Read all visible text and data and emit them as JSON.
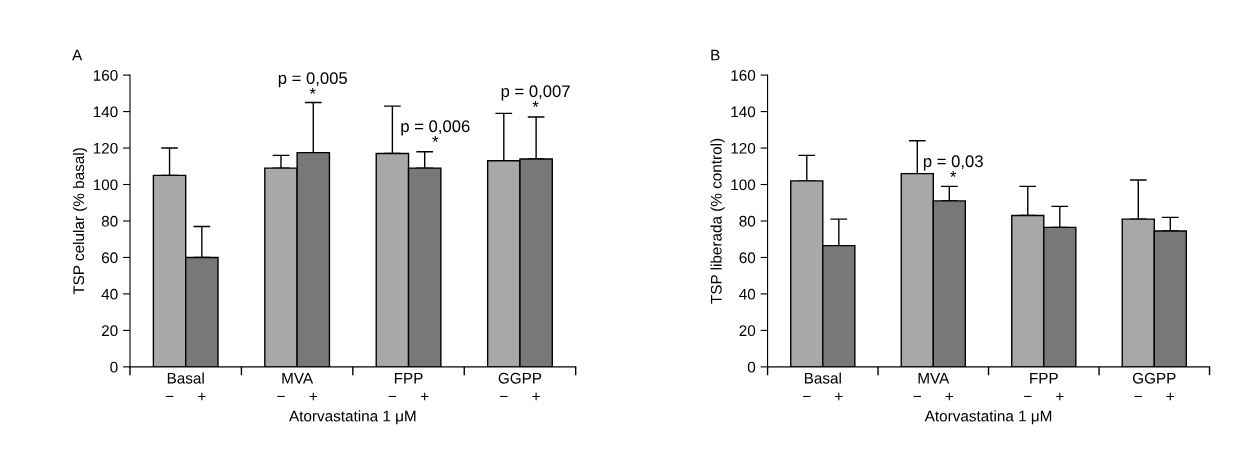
{
  "chart_data": [
    {
      "type": "bar",
      "title": "A",
      "ylabel": "TSP celular (% basal)",
      "xlabel": "Atorvastatina 1 μM",
      "categories": [
        "Basal",
        "MVA",
        "FPP",
        "GGPP"
      ],
      "series": [
        {
          "name": "−",
          "color": "#a8a8a8",
          "values": [
            105,
            109,
            117,
            113
          ],
          "errors": [
            [
              105,
              120
            ],
            [
              109,
              116
            ],
            [
              117,
              143
            ],
            [
              113,
              139
            ]
          ]
        },
        {
          "name": "+",
          "color": "#787878",
          "values": [
            60,
            117.5,
            109,
            114
          ],
          "errors": [
            [
              60,
              77
            ],
            [
              117.5,
              145
            ],
            [
              109,
              118
            ],
            [
              114,
              137
            ]
          ]
        }
      ],
      "annotations": [
        "p = 0,005\n*",
        "p = 0,006\n*",
        "p = 0,007\n*"
      ],
      "ylim": [
        0,
        160
      ],
      "yticks": [
        0,
        20,
        40,
        60,
        80,
        100,
        120,
        140,
        160
      ]
    },
    {
      "type": "bar",
      "title": "B",
      "ylabel": "TSP liberada (% control)",
      "xlabel": "Atorvastatina 1 μM",
      "categories": [
        "Basal",
        "MVA",
        "FPP",
        "GGPP"
      ],
      "series": [
        {
          "name": "−",
          "color": "#a8a8a8",
          "values": [
            102,
            106,
            83,
            81
          ],
          "errors": [
            [
              102,
              116
            ],
            [
              106,
              124
            ],
            [
              83,
              99
            ],
            [
              81,
              102.5
            ]
          ]
        },
        {
          "name": "+",
          "color": "#787878",
          "values": [
            66.5,
            91,
            76.5,
            74.5
          ],
          "errors": [
            [
              66.5,
              81
            ],
            [
              91,
              99
            ],
            [
              76.5,
              88
            ],
            [
              74.5,
              82
            ]
          ]
        }
      ],
      "annotations": [
        "p = 0,03\n*"
      ],
      "ylim": [
        0,
        160
      ],
      "yticks": [
        0,
        20,
        40,
        60,
        80,
        100,
        120,
        140,
        160
      ]
    }
  ]
}
